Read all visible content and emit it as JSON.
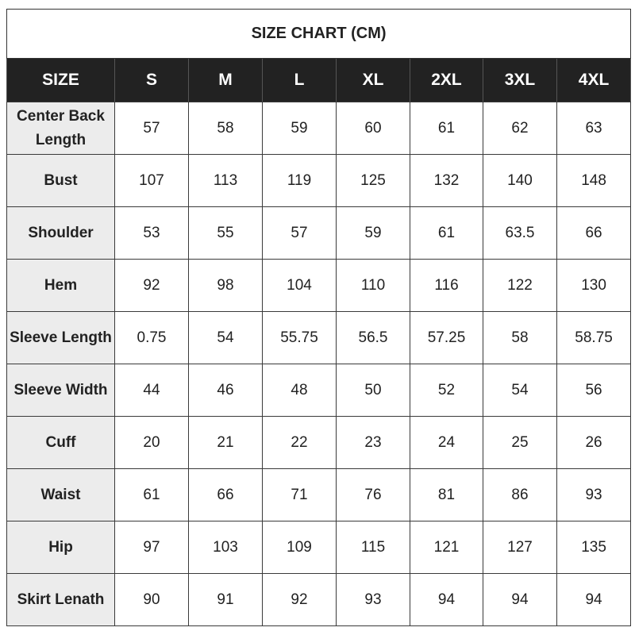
{
  "title": "SIZE CHART  (CM)",
  "header": [
    "SIZE",
    "S",
    "M",
    "L",
    "XL",
    "2XL",
    "3XL",
    "4XL"
  ],
  "rows": [
    {
      "label": "Center Back Length",
      "values": [
        "57",
        "58",
        "59",
        "60",
        "61",
        "62",
        "63"
      ]
    },
    {
      "label": "Bust",
      "values": [
        "107",
        "113",
        "119",
        "125",
        "132",
        "140",
        "148"
      ]
    },
    {
      "label": "Shoulder",
      "values": [
        "53",
        "55",
        "57",
        "59",
        "61",
        "63.5",
        "66"
      ]
    },
    {
      "label": "Hem",
      "values": [
        "92",
        "98",
        "104",
        "110",
        "116",
        "122",
        "130"
      ]
    },
    {
      "label": "Sleeve Length",
      "values": [
        "0.75",
        "54",
        "55.75",
        "56.5",
        "57.25",
        "58",
        "58.75"
      ]
    },
    {
      "label": "Sleeve Width",
      "values": [
        "44",
        "46",
        "48",
        "50",
        "52",
        "54",
        "56"
      ]
    },
    {
      "label": "Cuff",
      "values": [
        "20",
        "21",
        "22",
        "23",
        "24",
        "25",
        "26"
      ]
    },
    {
      "label": "Waist",
      "values": [
        "61",
        "66",
        "71",
        "76",
        "81",
        "86",
        "93"
      ]
    },
    {
      "label": "Hip",
      "values": [
        "97",
        "103",
        "109",
        "115",
        "121",
        "127",
        "135"
      ]
    },
    {
      "label": "Skirt Lenath",
      "values": [
        "90",
        "91",
        "92",
        "93",
        "94",
        "94",
        "94"
      ]
    }
  ]
}
